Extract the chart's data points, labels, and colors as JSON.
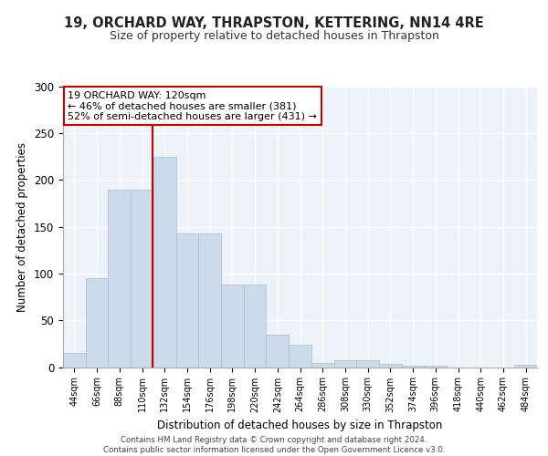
{
  "title": "19, ORCHARD WAY, THRAPSTON, KETTERING, NN14 4RE",
  "subtitle": "Size of property relative to detached houses in Thrapston",
  "xlabel": "Distribution of detached houses by size in Thrapston",
  "ylabel": "Number of detached properties",
  "bar_values": [
    15,
    95,
    190,
    190,
    225,
    143,
    143,
    88,
    88,
    35,
    24,
    4,
    7,
    7,
    3,
    1,
    1,
    0,
    0,
    0,
    2
  ],
  "bin_labels": [
    "44sqm",
    "66sqm",
    "88sqm",
    "110sqm",
    "132sqm",
    "154sqm",
    "176sqm",
    "198sqm",
    "220sqm",
    "242sqm",
    "264sqm",
    "286sqm",
    "308sqm",
    "330sqm",
    "352sqm",
    "374sqm",
    "396sqm",
    "418sqm",
    "440sqm",
    "462sqm",
    "484sqm"
  ],
  "bar_color": "#cddaea",
  "bar_edge_color": "#a8bdd0",
  "vline_color": "#cc0000",
  "annotation_text": "19 ORCHARD WAY: 120sqm\n← 46% of detached houses are smaller (381)\n52% of semi-detached houses are larger (431) →",
  "annotation_box_color": "#ffffff",
  "annotation_box_edge_color": "#cc0000",
  "ylim": [
    0,
    300
  ],
  "yticks": [
    0,
    50,
    100,
    150,
    200,
    250,
    300
  ],
  "background_color": "#edf2f8",
  "grid_color": "#ffffff",
  "footer_text": "Contains HM Land Registry data © Crown copyright and database right 2024.\nContains public sector information licensed under the Open Government Licence v3.0."
}
